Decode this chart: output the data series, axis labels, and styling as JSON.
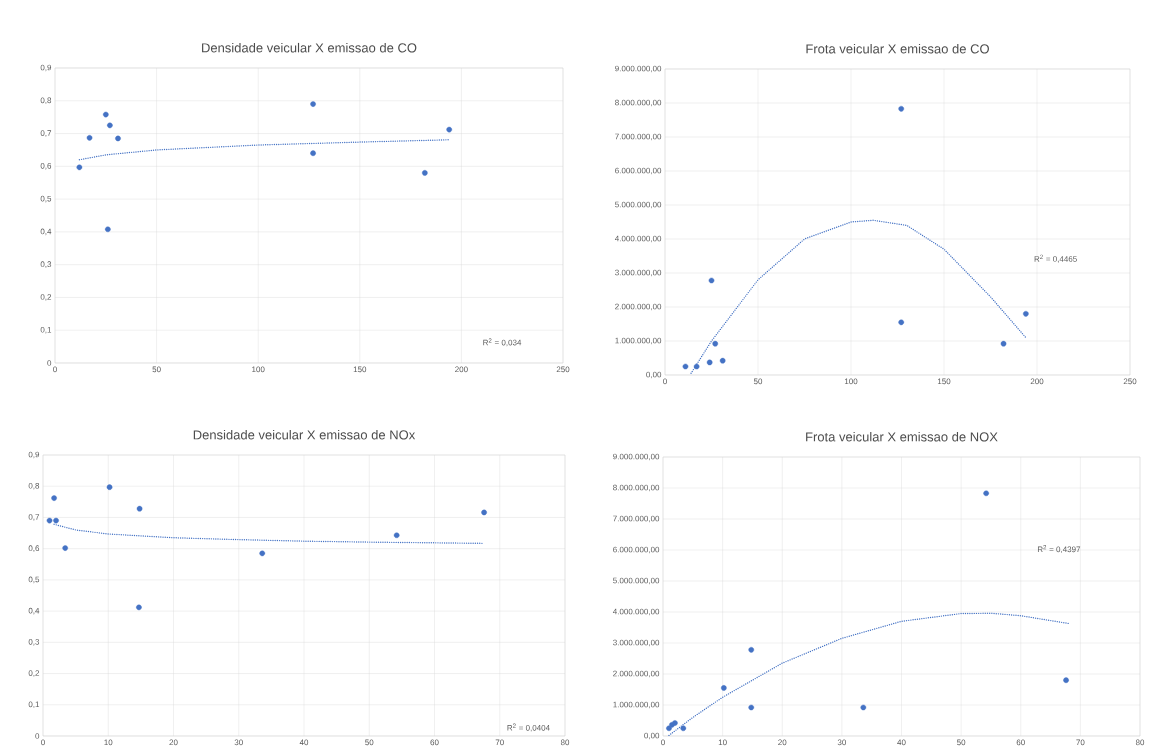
{
  "chart_data": [
    {
      "type": "scatter",
      "title": "Densidade veicular X emissao de CO",
      "xlim": [
        0,
        250
      ],
      "xticks": [
        0,
        50,
        100,
        150,
        200,
        250
      ],
      "ylim": [
        0,
        0.9
      ],
      "yticks": [
        0,
        {
          "value": 0.1,
          "label": "0,1"
        },
        {
          "value": 0.2,
          "label": "0,2"
        },
        {
          "value": 0.3,
          "label": "0,3"
        },
        {
          "value": 0.4,
          "label": "0,4"
        },
        {
          "value": 0.5,
          "label": "0,5"
        },
        {
          "value": 0.6,
          "label": "0,6"
        },
        {
          "value": 0.7,
          "label": "0,7"
        },
        {
          "value": 0.8,
          "label": "0,8"
        },
        {
          "value": 0.9,
          "label": "0,9"
        }
      ],
      "grid": true,
      "series": [
        {
          "marker": "circle",
          "color": "#4472c4",
          "x": [
            12,
            17,
            25,
            27,
            31,
            26,
            127,
            127,
            182,
            194
          ],
          "values": [
            0.597,
            0.687,
            0.758,
            0.725,
            0.685,
            0.408,
            0.79,
            0.64,
            0.58,
            0.712
          ]
        },
        {
          "type": "line",
          "line_style": "dotted",
          "color": "#4472c4",
          "x": [
            12,
            25,
            50,
            100,
            150,
            194
          ],
          "values": [
            0.62,
            0.635,
            0.65,
            0.665,
            0.674,
            0.681
          ]
        }
      ],
      "annotations": [
        "R$^{2}$ = 0,034"
      ]
    },
    {
      "type": "scatter",
      "title": "Frota veicular X emissao de CO",
      "xlim": [
        0,
        250
      ],
      "xticks": [
        0,
        50,
        100,
        150,
        200,
        250
      ],
      "ylim": [
        0,
        9000000
      ],
      "yticks": [
        {
          "value": 0,
          "label": "0,00"
        },
        {
          "value": 1000000,
          "label": "1.000.000,00"
        },
        {
          "value": 2000000,
          "label": "2.000.000,00"
        },
        {
          "value": 3000000,
          "label": "3.000.000,00"
        },
        {
          "value": 4000000,
          "label": "4.000.000,00"
        },
        {
          "value": 5000000,
          "label": "5.000.000,00"
        },
        {
          "value": 6000000,
          "label": "6.000.000,00"
        },
        {
          "value": 7000000,
          "label": "7.000.000,00"
        },
        {
          "value": 8000000,
          "label": "8.000.000,00"
        },
        {
          "value": 9000000,
          "label": "9.000.000,00"
        }
      ],
      "grid": true,
      "series": [
        {
          "marker": "circle",
          "color": "#4472c4",
          "x": [
            11,
            17,
            25,
            24,
            27,
            31,
            127,
            127,
            182,
            194
          ],
          "values": [
            250000,
            250000,
            2780000,
            370000,
            920000,
            420000,
            7830000,
            1550000,
            920000,
            1800000
          ]
        },
        {
          "type": "line",
          "line_style": "dotted",
          "color": "#4472c4",
          "x": [
            14,
            25,
            50,
            75,
            100,
            112,
            130,
            150,
            175,
            194
          ],
          "values": [
            50000,
            1000000,
            2800000,
            4000000,
            4500000,
            4550000,
            4400000,
            3700000,
            2300000,
            1100000
          ]
        }
      ],
      "annotations": [
        "R$^{2}$ = 0,4465"
      ]
    },
    {
      "type": "scatter",
      "title": "Densidade veicular X emissao de NOx",
      "xlim": [
        0,
        80
      ],
      "xticks": [
        0,
        10,
        20,
        30,
        40,
        50,
        60,
        70,
        80
      ],
      "ylim": [
        0,
        0.9
      ],
      "yticks": [
        0,
        {
          "value": 0.1,
          "label": "0,1"
        },
        {
          "value": 0.2,
          "label": "0,2"
        },
        {
          "value": 0.3,
          "label": "0,3"
        },
        {
          "value": 0.4,
          "label": "0,4"
        },
        {
          "value": 0.5,
          "label": "0,5"
        },
        {
          "value": 0.6,
          "label": "0,6"
        },
        {
          "value": 0.7,
          "label": "0,7"
        },
        {
          "value": 0.8,
          "label": "0,8"
        },
        {
          "value": 0.9,
          "label": "0,9"
        }
      ],
      "grid": true,
      "series": [
        {
          "marker": "circle",
          "color": "#4472c4",
          "x": [
            1,
            1.7,
            2,
            3.4,
            10.2,
            14.8,
            14.7,
            33.6,
            54.2,
            67.6
          ],
          "values": [
            0.69,
            0.762,
            0.69,
            0.602,
            0.797,
            0.728,
            0.412,
            0.585,
            0.643,
            0.716
          ]
        },
        {
          "type": "line",
          "line_style": "dotted",
          "color": "#4472c4",
          "x": [
            1.7,
            5,
            10,
            20,
            30,
            40,
            50,
            67.6
          ],
          "values": [
            0.678,
            0.66,
            0.647,
            0.635,
            0.629,
            0.624,
            0.621,
            0.617
          ]
        }
      ],
      "annotations": [
        "R$^{2}$ = 0,0404"
      ]
    },
    {
      "type": "scatter",
      "title": "Frota veicular X emissao de NOX",
      "xlim": [
        0,
        80
      ],
      "xticks": [
        0,
        10,
        20,
        30,
        40,
        50,
        60,
        70,
        80
      ],
      "ylim": [
        0,
        9000000
      ],
      "yticks": [
        {
          "value": 0,
          "label": "0,00"
        },
        {
          "value": 1000000,
          "label": "1.000.000,00"
        },
        {
          "value": 2000000,
          "label": "2.000.000,00"
        },
        {
          "value": 3000000,
          "label": "3.000.000,00"
        },
        {
          "value": 4000000,
          "label": "4.000.000,00"
        },
        {
          "value": 5000000,
          "label": "5.000.000,00"
        },
        {
          "value": 6000000,
          "label": "6.000.000,00"
        },
        {
          "value": 7000000,
          "label": "7.000.000,00"
        },
        {
          "value": 8000000,
          "label": "8.000.000,00"
        },
        {
          "value": 9000000,
          "label": "9.000.000,00"
        }
      ],
      "grid": true,
      "series": [
        {
          "marker": "circle",
          "color": "#4472c4",
          "x": [
            1,
            1.5,
            2,
            3.4,
            10.2,
            14.8,
            14.8,
            33.6,
            54.2,
            67.6
          ],
          "values": [
            250000,
            360000,
            420000,
            250000,
            1550000,
            2780000,
            920000,
            920000,
            7830000,
            1800000
          ]
        },
        {
          "type": "line",
          "line_style": "dotted",
          "color": "#4472c4",
          "x": [
            1,
            5,
            10,
            20,
            30,
            40,
            50,
            55,
            60,
            68
          ],
          "values": [
            20000,
            600000,
            1250000,
            2350000,
            3150000,
            3700000,
            3950000,
            3960000,
            3880000,
            3630000
          ]
        }
      ],
      "annotations": [
        "R$^{2}$ = 0,4397"
      ]
    }
  ]
}
